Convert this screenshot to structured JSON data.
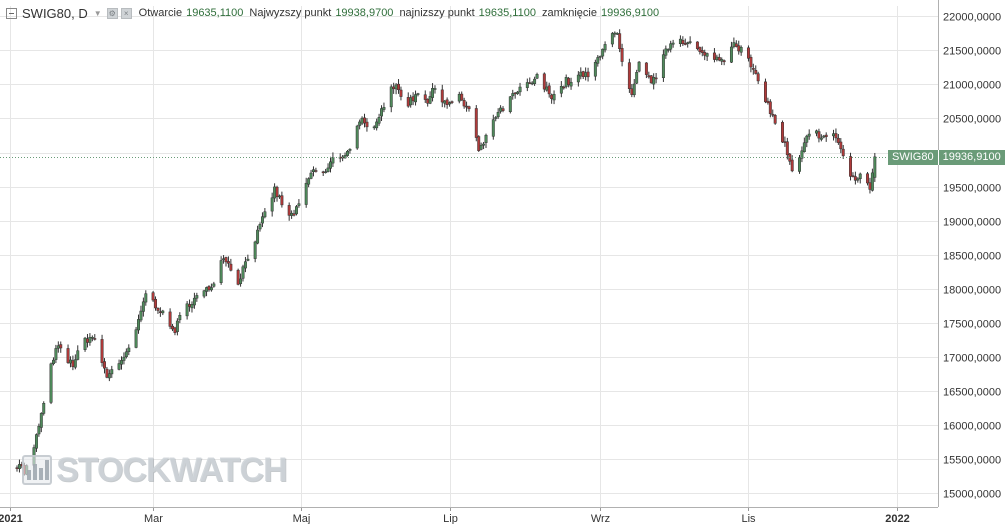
{
  "header": {
    "symbol": "SWIG80, D",
    "open_label": "Otwarcie",
    "open_value": "19635,1100",
    "high_label": "Najwyzszy punkt",
    "high_value": "19938,9700",
    "low_label": "najnizszy punkt",
    "low_value": "19635,1100",
    "close_label": "zamknięcie",
    "close_value": "19936,9100"
  },
  "price_badge": {
    "symbol": "SWIG80",
    "value": "19936,9100"
  },
  "watermark": {
    "text": "STOCKWATCH"
  },
  "colors": {
    "up": "#4f8a5b",
    "down": "#b03a3a",
    "grid": "#e6e6e6",
    "last_line": "#6a9b78",
    "text": "#333333"
  },
  "chart_data": {
    "type": "candlestick",
    "title": "SWIG80, D",
    "ylim": [
      14800,
      22150
    ],
    "y_ticks": [
      15000,
      15500,
      16000,
      16500,
      17000,
      17500,
      18000,
      18500,
      19000,
      19500,
      20000,
      20500,
      21000,
      21500,
      22000
    ],
    "y_tick_labels": [
      "15000,0000",
      "15500,0000",
      "16000,0000",
      "16500,0000",
      "17000,0000",
      "17500,0000",
      "18000,0000",
      "18500,0000",
      "19000,0000",
      "19500,0000",
      "20000,0000",
      "20500,0000",
      "21000,0000",
      "21500,0000",
      "22000,0000"
    ],
    "x_range": [
      "2020-12-28",
      "2022-01-18"
    ],
    "x_ticks": [
      {
        "date": "2021-01-01",
        "label": "2021",
        "bold": true
      },
      {
        "date": "2021-03-01",
        "label": "Mar",
        "bold": false
      },
      {
        "date": "2021-05-01",
        "label": "Maj",
        "bold": false
      },
      {
        "date": "2021-07-01",
        "label": "Lip",
        "bold": false
      },
      {
        "date": "2021-09-01",
        "label": "Wrz",
        "bold": false
      },
      {
        "date": "2021-11-01",
        "label": "Lis",
        "bold": false
      },
      {
        "date": "2022-01-01",
        "label": "2022",
        "bold": true
      }
    ],
    "last_close": 19936.91,
    "anchors": [
      [
        "2021-01-02",
        15400
      ],
      [
        "2021-01-05",
        15450
      ],
      [
        "2021-01-07",
        15300
      ],
      [
        "2021-01-09",
        15450
      ],
      [
        "2021-01-11",
        15650
      ],
      [
        "2021-01-13",
        16000
      ],
      [
        "2021-01-15",
        16300
      ],
      [
        "2021-01-17",
        16700
      ],
      [
        "2021-01-19",
        17000
      ],
      [
        "2021-01-21",
        17150
      ],
      [
        "2021-01-24",
        16950
      ],
      [
        "2021-01-27",
        16900
      ],
      [
        "2021-02-01",
        17250
      ],
      [
        "2021-02-04",
        17300
      ],
      [
        "2021-02-07",
        17050
      ],
      [
        "2021-02-10",
        16700
      ],
      [
        "2021-02-13",
        16900
      ],
      [
        "2021-02-17",
        16950
      ],
      [
        "2021-02-20",
        17200
      ],
      [
        "2021-02-23",
        17500
      ],
      [
        "2021-02-26",
        17950
      ],
      [
        "2021-03-01",
        17800
      ],
      [
        "2021-03-04",
        17700
      ],
      [
        "2021-03-07",
        17450
      ],
      [
        "2021-03-10",
        17400
      ],
      [
        "2021-03-13",
        17650
      ],
      [
        "2021-03-16",
        17800
      ],
      [
        "2021-03-20",
        17900
      ],
      [
        "2021-03-24",
        18000
      ],
      [
        "2021-03-27",
        18200
      ],
      [
        "2021-03-30",
        18500
      ],
      [
        "2021-04-02",
        18300
      ],
      [
        "2021-04-05",
        18100
      ],
      [
        "2021-04-08",
        18400
      ],
      [
        "2021-04-11",
        18650
      ],
      [
        "2021-04-14",
        18900
      ],
      [
        "2021-04-17",
        19200
      ],
      [
        "2021-04-20",
        19450
      ],
      [
        "2021-04-23",
        19250
      ],
      [
        "2021-04-26",
        19050
      ],
      [
        "2021-04-29",
        19150
      ],
      [
        "2021-05-02",
        19400
      ],
      [
        "2021-05-05",
        19700
      ],
      [
        "2021-05-08",
        19750
      ],
      [
        "2021-05-11",
        19700
      ],
      [
        "2021-05-14",
        19900
      ],
      [
        "2021-05-17",
        19950
      ],
      [
        "2021-05-20",
        20000
      ],
      [
        "2021-05-23",
        20300
      ],
      [
        "2021-05-26",
        20450
      ],
      [
        "2021-05-29",
        20300
      ],
      [
        "2021-06-01",
        20500
      ],
      [
        "2021-06-04",
        20700
      ],
      [
        "2021-06-07",
        21000
      ],
      [
        "2021-06-10",
        20900
      ],
      [
        "2021-06-13",
        20700
      ],
      [
        "2021-06-16",
        20800
      ],
      [
        "2021-06-19",
        20950
      ],
      [
        "2021-06-22",
        20750
      ],
      [
        "2021-06-25",
        20950
      ],
      [
        "2021-06-28",
        20800
      ],
      [
        "2021-07-01",
        20700
      ],
      [
        "2021-07-04",
        20850
      ],
      [
        "2021-07-07",
        20700
      ],
      [
        "2021-07-10",
        20600
      ],
      [
        "2021-07-13",
        20000
      ],
      [
        "2021-07-16",
        20200
      ],
      [
        "2021-07-19",
        20500
      ],
      [
        "2021-07-22",
        20600
      ],
      [
        "2021-07-25",
        20750
      ],
      [
        "2021-07-28",
        20850
      ],
      [
        "2021-07-31",
        20950
      ],
      [
        "2021-08-03",
        21000
      ],
      [
        "2021-08-06",
        21100
      ],
      [
        "2021-08-09",
        20950
      ],
      [
        "2021-08-12",
        20850
      ],
      [
        "2021-08-15",
        20900
      ],
      [
        "2021-08-18",
        21050
      ],
      [
        "2021-08-21",
        21000
      ],
      [
        "2021-08-24",
        21150
      ],
      [
        "2021-08-27",
        21100
      ],
      [
        "2021-08-30",
        21300
      ],
      [
        "2021-09-02",
        21550
      ],
      [
        "2021-09-05",
        21750
      ],
      [
        "2021-09-08",
        21700
      ],
      [
        "2021-09-11",
        21100
      ],
      [
        "2021-09-14",
        20800
      ],
      [
        "2021-09-17",
        21300
      ],
      [
        "2021-09-20",
        21100
      ],
      [
        "2021-09-23",
        21050
      ],
      [
        "2021-09-26",
        21300
      ],
      [
        "2021-09-29",
        21550
      ],
      [
        "2021-10-02",
        21700
      ],
      [
        "2021-10-05",
        21650
      ],
      [
        "2021-10-08",
        21600
      ],
      [
        "2021-10-11",
        21500
      ],
      [
        "2021-10-14",
        21400
      ],
      [
        "2021-10-17",
        21450
      ],
      [
        "2021-10-20",
        21350
      ],
      [
        "2021-10-23",
        21400
      ],
      [
        "2021-10-26",
        21650
      ],
      [
        "2021-10-29",
        21500
      ],
      [
        "2021-11-01",
        21350
      ],
      [
        "2021-11-04",
        21100
      ],
      [
        "2021-11-07",
        20900
      ],
      [
        "2021-11-10",
        20600
      ],
      [
        "2021-11-13",
        20350
      ],
      [
        "2021-11-16",
        20100
      ],
      [
        "2021-11-19",
        19700
      ],
      [
        "2021-11-22",
        19900
      ],
      [
        "2021-11-25",
        20200
      ],
      [
        "2021-11-28",
        20300
      ],
      [
        "2021-12-01",
        20250
      ],
      [
        "2021-12-04",
        20200
      ],
      [
        "2021-12-07",
        20250
      ],
      [
        "2021-12-10",
        19950
      ],
      [
        "2021-12-13",
        19650
      ],
      [
        "2021-12-16",
        19600
      ],
      [
        "2021-12-19",
        19700
      ],
      [
        "2021-12-21",
        19450
      ],
      [
        "2021-12-23",
        19936.91
      ]
    ]
  }
}
